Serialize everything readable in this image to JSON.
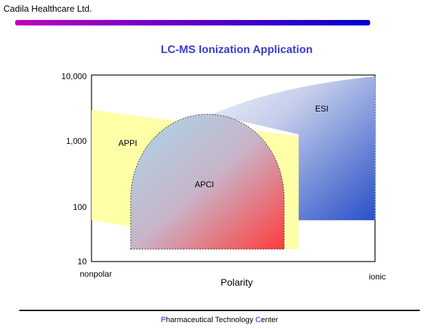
{
  "header": {
    "company": "Cadila Healthcare Ltd.",
    "bar_gradient": [
      "#c000c0",
      "#0000cc"
    ]
  },
  "title": "LC-MS Ionization Application",
  "diagram": {
    "y_ticks": [
      "10,000",
      "1,000",
      "100",
      "10"
    ],
    "x_left_label": "nonpolar",
    "x_right_label": "ionic",
    "x_axis_title": "Polarity",
    "regions": [
      {
        "label": "ESI",
        "colors": [
          "#f2f4fb",
          "#2850c8"
        ]
      },
      {
        "label": "APPI",
        "colors": [
          "#ffffa8"
        ]
      },
      {
        "label": "APCI",
        "colors": [
          "#add8e6",
          "#ff4040"
        ]
      }
    ]
  },
  "footer": {
    "p": "P",
    "middle": "harmaceutical Technology ",
    "c": "C",
    "end": "enter"
  }
}
